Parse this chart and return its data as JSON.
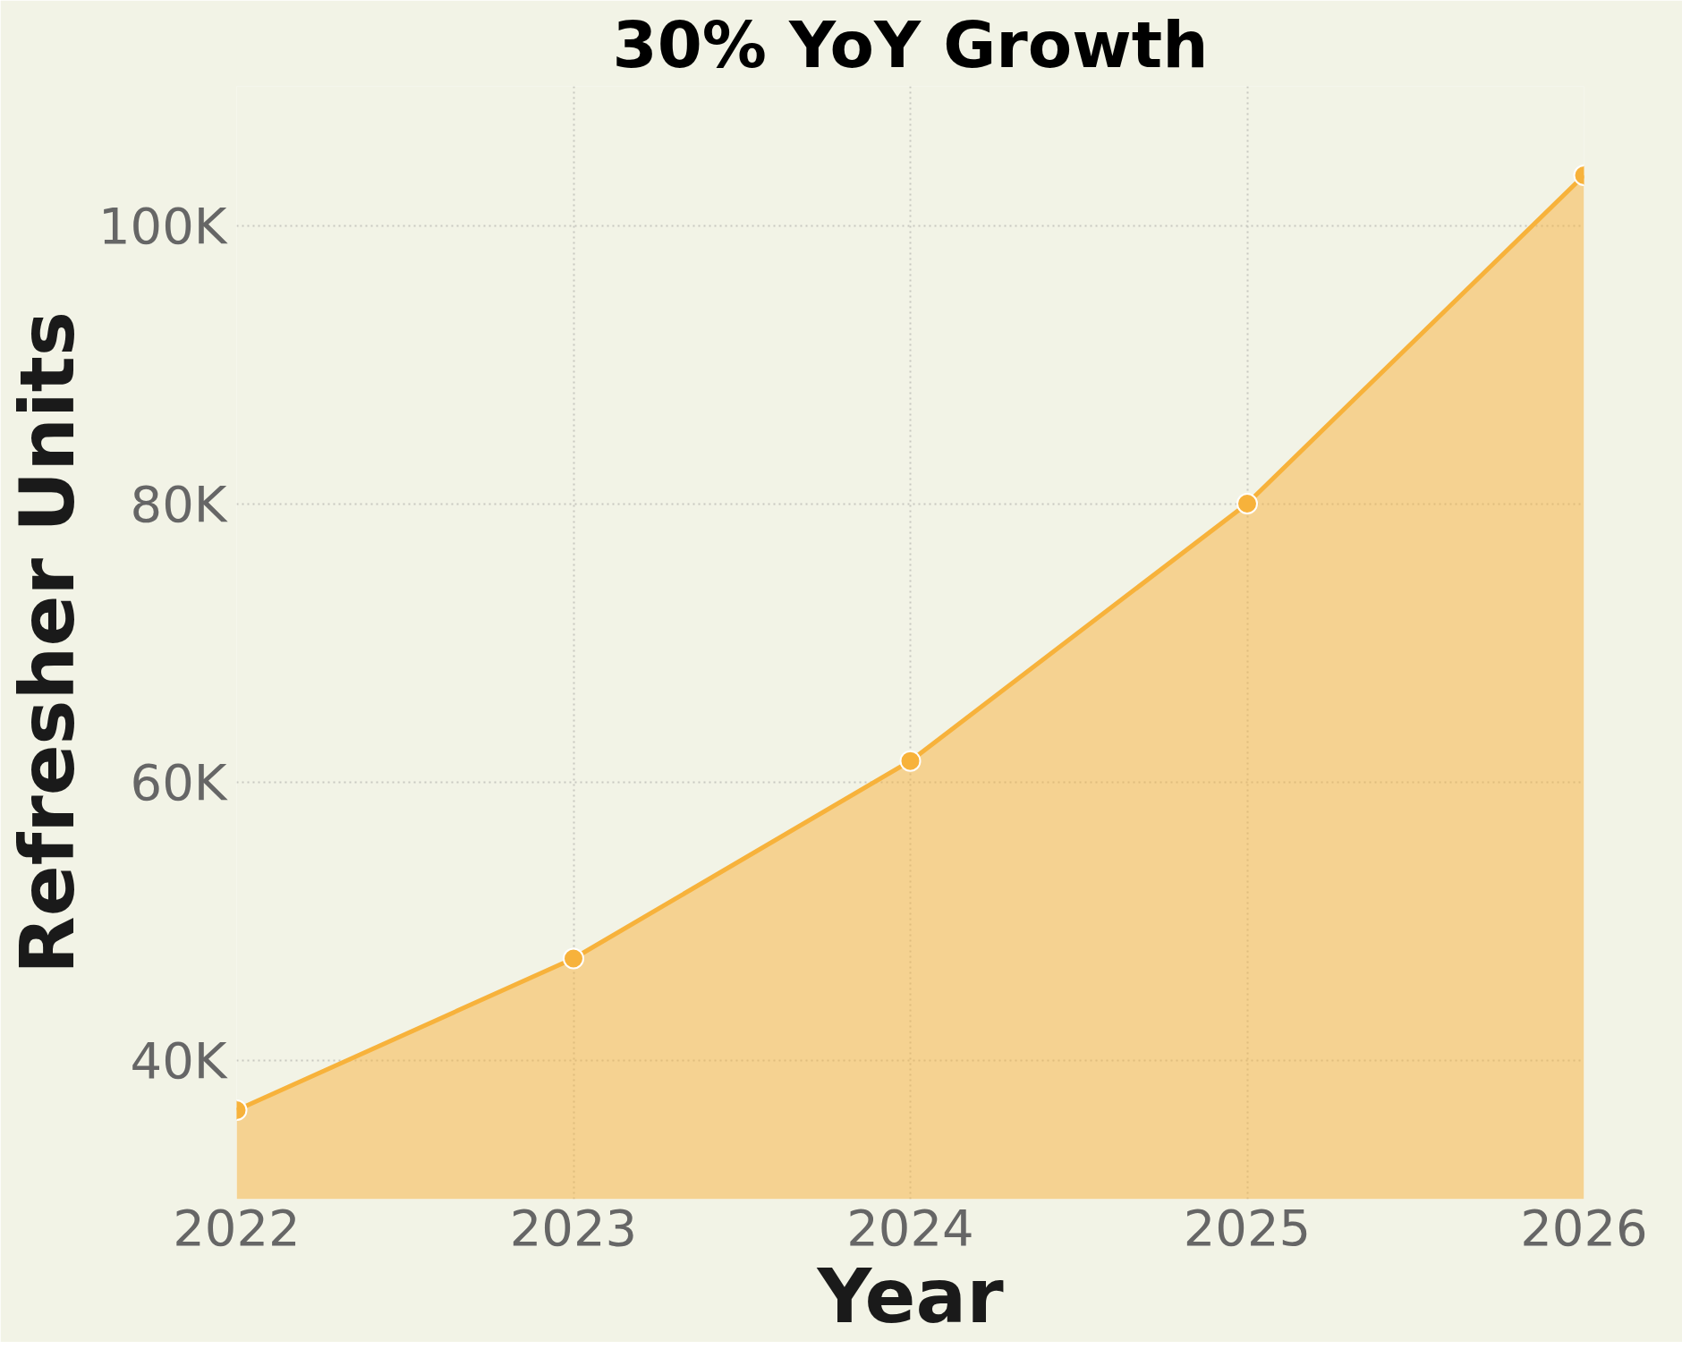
{
  "chart_data": {
    "type": "area",
    "title": "30% YoY Growth",
    "xlabel": "Year",
    "ylabel": "Refresher Units",
    "x": [
      2022,
      2023,
      2024,
      2025,
      2026
    ],
    "series": [
      {
        "color": "#f7b23b",
        "values": [
          36400,
          47300,
          61500,
          80000,
          103600
        ]
      }
    ],
    "xlim": [
      2022,
      2026
    ],
    "xticks": [
      2022,
      2023,
      2024,
      2025,
      2026
    ],
    "ylim": [
      30000,
      110000
    ],
    "yticks": [
      {
        "value": 40000,
        "label": "40K"
      },
      {
        "value": 60000,
        "label": "60K"
      },
      {
        "value": 80000,
        "label": "80K"
      },
      {
        "value": 100000,
        "label": "100K"
      }
    ],
    "grid": true,
    "marker": "circle",
    "line_style": "solid"
  }
}
